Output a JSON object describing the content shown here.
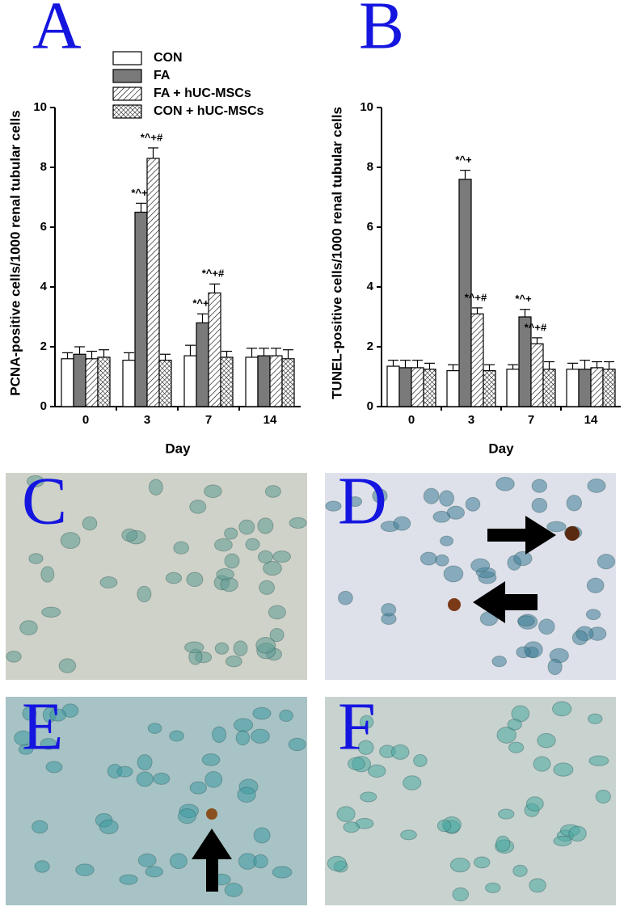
{
  "legend": [
    "CON",
    "FA",
    "FA + hUC-MSCs",
    "CON + hUC-MSCs"
  ],
  "chart_data": [
    {
      "type": "bar",
      "panel_label": "A",
      "x_label": "Day",
      "y_label": "PCNA-positive cells/1000 renal tubular cells",
      "categories": [
        "0",
        "3",
        "7",
        "14"
      ],
      "ylim": [
        0,
        10
      ],
      "yticks": [
        0,
        2,
        4,
        6,
        8,
        10
      ],
      "series": [
        {
          "color": "#ffffff",
          "pattern": "solid",
          "values": [
            1.6,
            1.55,
            1.7,
            1.65
          ],
          "errors": [
            0.2,
            0.25,
            0.35,
            0.3
          ],
          "annotations": [
            null,
            null,
            null,
            null
          ]
        },
        {
          "color": "#7a7a7a",
          "pattern": "solid",
          "values": [
            1.75,
            6.5,
            2.8,
            1.7
          ],
          "errors": [
            0.25,
            0.3,
            0.3,
            0.25
          ],
          "annotations": [
            null,
            "*^+",
            "*^+",
            null
          ]
        },
        {
          "color": "#ffffff",
          "pattern": "diagonal",
          "values": [
            1.6,
            8.3,
            3.8,
            1.7
          ],
          "errors": [
            0.25,
            0.35,
            0.3,
            0.25
          ],
          "annotations": [
            null,
            "*^+#",
            "*^+#",
            null
          ]
        },
        {
          "color": "#ffffff",
          "pattern": "crosshatch",
          "values": [
            1.65,
            1.55,
            1.65,
            1.6
          ],
          "errors": [
            0.25,
            0.2,
            0.2,
            0.3
          ],
          "annotations": [
            null,
            null,
            null,
            null
          ]
        }
      ]
    },
    {
      "type": "bar",
      "panel_label": "B",
      "x_label": "Day",
      "y_label": "TUNEL-positive cells/1000 renal tubular cells",
      "categories": [
        "0",
        "3",
        "7",
        "14"
      ],
      "ylim": [
        0,
        10
      ],
      "yticks": [
        0,
        2,
        4,
        6,
        8,
        10
      ],
      "series": [
        {
          "color": "#ffffff",
          "pattern": "solid",
          "values": [
            1.35,
            1.2,
            1.25,
            1.25
          ],
          "errors": [
            0.2,
            0.2,
            0.15,
            0.2
          ],
          "annotations": [
            null,
            null,
            null,
            null
          ]
        },
        {
          "color": "#7a7a7a",
          "pattern": "solid",
          "values": [
            1.3,
            7.6,
            3.0,
            1.25
          ],
          "errors": [
            0.25,
            0.3,
            0.25,
            0.3
          ],
          "annotations": [
            null,
            "*^+",
            "*^+",
            null
          ]
        },
        {
          "color": "#ffffff",
          "pattern": "diagonal",
          "values": [
            1.3,
            3.1,
            2.1,
            1.3
          ],
          "errors": [
            0.25,
            0.2,
            0.2,
            0.2
          ],
          "annotations": [
            null,
            "*^+#",
            "*^+#",
            null
          ]
        },
        {
          "color": "#ffffff",
          "pattern": "crosshatch",
          "values": [
            1.25,
            1.2,
            1.25,
            1.25
          ],
          "errors": [
            0.2,
            0.2,
            0.25,
            0.25
          ],
          "annotations": [
            null,
            null,
            null,
            null
          ]
        }
      ]
    }
  ],
  "panels": [
    {
      "label": "C"
    },
    {
      "label": "D"
    },
    {
      "label": "E"
    },
    {
      "label": "F"
    }
  ]
}
